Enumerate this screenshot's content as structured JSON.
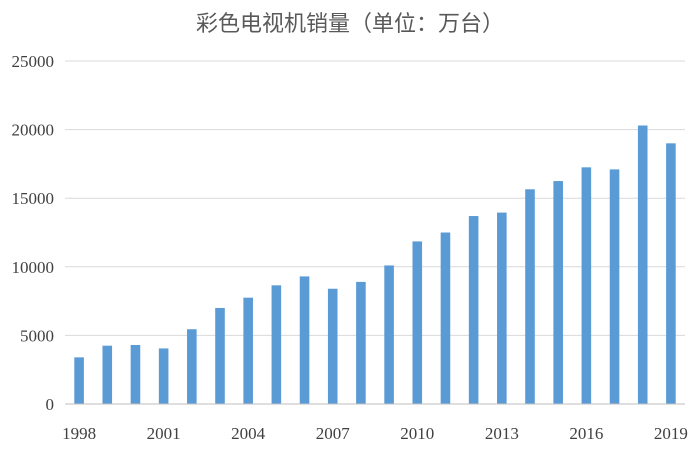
{
  "chart_data": {
    "type": "bar",
    "title": "彩色电视机销量（单位：万台）",
    "xlabel": "",
    "ylabel": "",
    "categories": [
      "1998",
      "1999",
      "2000",
      "2001",
      "2002",
      "2003",
      "2004",
      "2005",
      "2006",
      "2007",
      "2008",
      "2009",
      "2010",
      "2011",
      "2012",
      "2013",
      "2014",
      "2015",
      "2016",
      "2017",
      "2018",
      "2019"
    ],
    "x_tick_labels": [
      "1998",
      "2001",
      "2004",
      "2007",
      "2010",
      "2013",
      "2016",
      "2019"
    ],
    "values": [
      3400,
      4250,
      4300,
      4050,
      5450,
      7000,
      7750,
      8650,
      9300,
      8400,
      8900,
      10100,
      11850,
      12500,
      13700,
      13950,
      15650,
      16250,
      17250,
      17100,
      20300,
      19000
    ],
    "ylim": [
      0,
      25000
    ],
    "y_ticks": [
      0,
      5000,
      10000,
      15000,
      20000,
      25000
    ],
    "bar_color": "#5b9bd5",
    "grid": true,
    "legend": "none"
  }
}
